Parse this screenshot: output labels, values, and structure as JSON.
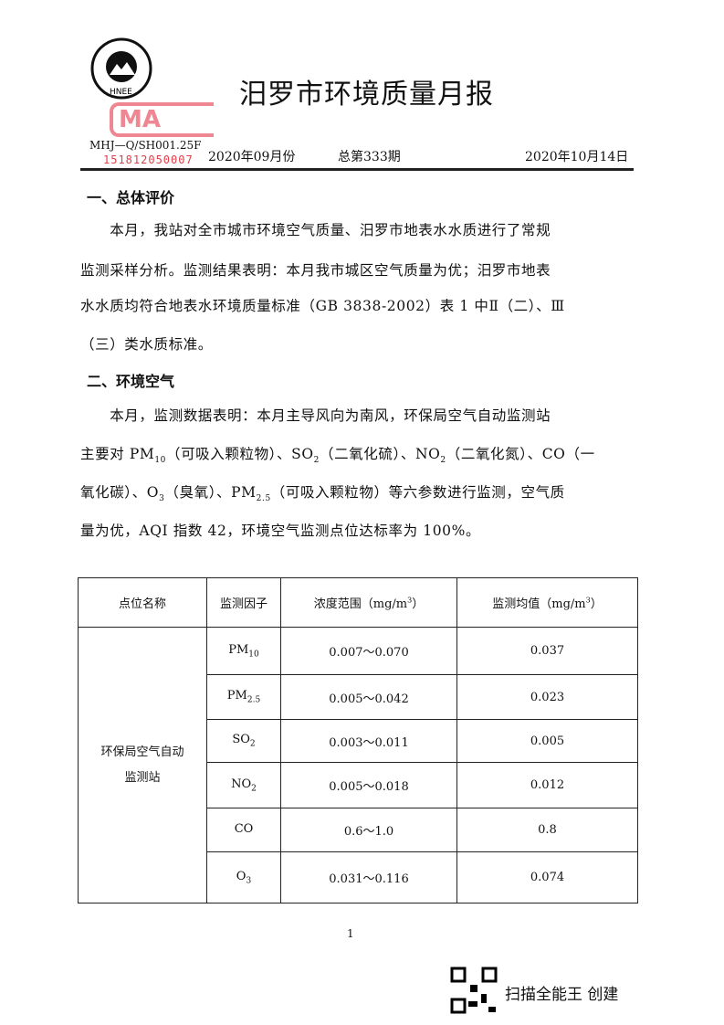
{
  "header": {
    "title": "汨罗市环境质量月报",
    "logo_text": "HNEE",
    "stamp_text": "MA",
    "doc_code": "MHJ—Q/SH001.25F",
    "stamp_number": "151812050007",
    "period": "2020年09月份",
    "issue": "总第333期",
    "date": "2020年10月14日"
  },
  "section1": {
    "heading": "一、总体评价",
    "lines": [
      "　　本月，我站对全市城市环境空气质量、汨罗市地表水水质进行了常规",
      "监测采样分析。监测结果表明：本月我市城区空气质量为优；汨罗市地表",
      "水水质均符合地表水环境质量标准（GB 3838-2002）表 1 中Ⅱ（二）、Ⅲ",
      "（三）类水质标准。"
    ]
  },
  "section2": {
    "heading": "二、环境空气",
    "l1": "　　本月，监测数据表明：本月主导风向为南风，环保局空气自动监测站",
    "l2": [
      "主要对 PM",
      "10",
      "（可吸入颗粒物）、SO",
      "2",
      "（二氧化硫）、NO",
      "2",
      "（二氧化氮）、CO（一"
    ],
    "l3": [
      "氧化碳）、O",
      "3",
      "（臭氧）、PM",
      "2.5",
      "（可吸入颗粒物）等六参数进行监测，空气质"
    ],
    "l4": "量为优，AQI 指数 42，环境空气监测点位达标率为 100%。"
  },
  "table": {
    "headers": [
      "点位名称",
      "监测因子",
      "浓度范围（mg/m",
      "3",
      "）",
      "监测均值（mg/m",
      "3",
      "）"
    ],
    "station": [
      "环保局空气自动",
      "监测站"
    ],
    "rows": [
      {
        "f": "PM",
        "s": "10",
        "range": "0.007～0.070",
        "mean": "0.037"
      },
      {
        "f": "PM",
        "s": "2.5",
        "range": "0.005～0.042",
        "mean": "0.023"
      },
      {
        "f": "SO",
        "s": "2",
        "range": "0.003～0.011",
        "mean": "0.005"
      },
      {
        "f": "NO",
        "s": "2",
        "range": "0.005～0.018",
        "mean": "0.012"
      },
      {
        "f": "CO",
        "s": "",
        "range": "0.6～1.0",
        "mean": "0.8"
      },
      {
        "f": "O",
        "s": "3",
        "range": "0.031～0.116",
        "mean": "0.074"
      }
    ]
  },
  "footer": {
    "page": "1",
    "scanner": "扫描全能王 创建"
  }
}
